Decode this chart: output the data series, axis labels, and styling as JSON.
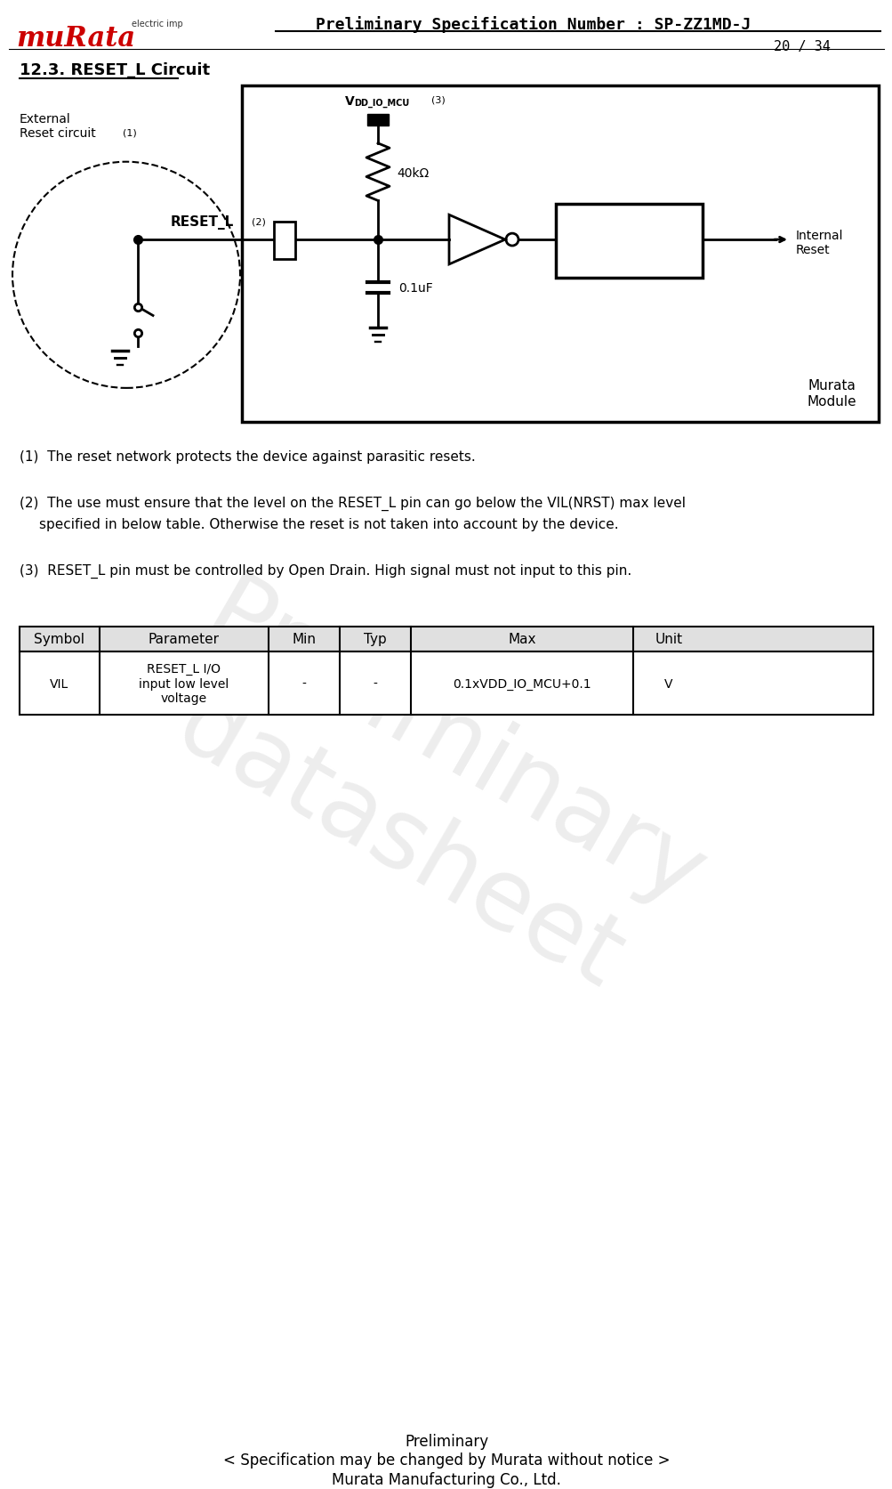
{
  "page_title": "Preliminary Specification Number : SP-ZZ1MD-J",
  "page_number": "20 / 34",
  "section_title": "12.3. RESET_L Circuit",
  "note1": "(1)  The reset network protects the device against parasitic resets.",
  "note2_line1": "(2)  The use must ensure that the level on the RESET_L pin can go below the VIL(NRST) max level",
  "note2_line2": "     specified in below table. Otherwise the reset is not taken into account by the device.",
  "note3": "(3)  RESET_L pin must be controlled by Open Drain. High signal must not input to this pin.",
  "table_headers": [
    "Symbol",
    "Parameter",
    "Min",
    "Typ",
    "Max",
    "Unit"
  ],
  "table_row1": [
    "VIL",
    "RESET_L I/O\ninput low level\nvoltage",
    "-",
    "-",
    "0.1xVDD_IO_MCU+0.1",
    "V"
  ],
  "footer_line1": "Preliminary",
  "footer_line2": "< Specification may be changed by Murata without notice >",
  "footer_line3": "Murata Manufacturing Co., Ltd.",
  "bg_color": "#ffffff",
  "text_color": "#000000",
  "murata_logo_color": "#cc0000"
}
